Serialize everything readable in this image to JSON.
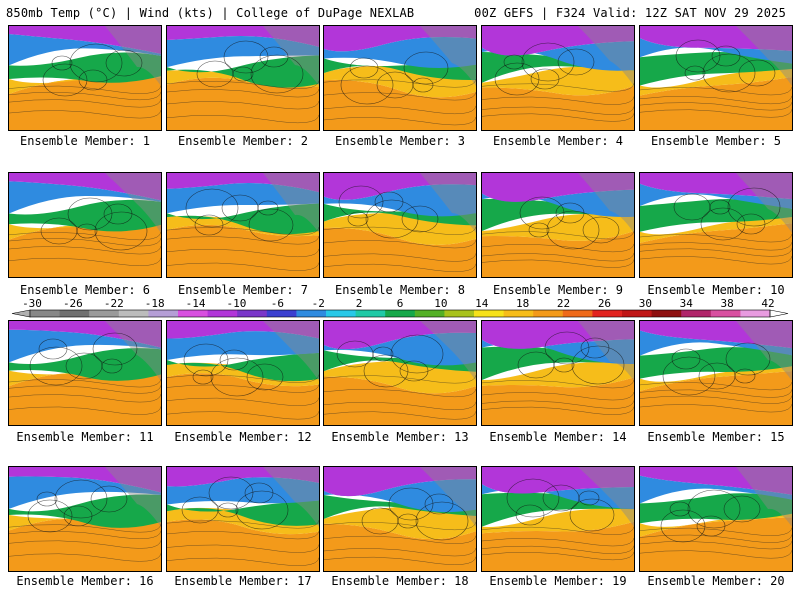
{
  "header": {
    "left": "850mb Temp (°C) | Wind (kts) | College of DuPage NEXLAB",
    "right": "00Z GEFS | F324 Valid: 12Z SAT NOV 29 2025"
  },
  "panel_label_prefix": "Ensemble Member: ",
  "members": [
    1,
    2,
    3,
    4,
    5,
    6,
    7,
    8,
    9,
    10,
    11,
    12,
    13,
    14,
    15,
    16,
    17,
    18,
    19,
    20
  ],
  "colorbar": {
    "ticks": [
      "-30",
      "-26",
      "-22",
      "-18",
      "-14",
      "-10",
      "-6",
      "-2",
      "2",
      "6",
      "10",
      "14",
      "18",
      "22",
      "26",
      "30",
      "34",
      "38",
      "42"
    ],
    "colors": [
      "#888888",
      "#707070",
      "#9a9a9a",
      "#bcbcbc",
      "#b59ed6",
      "#d84fe0",
      "#b236d9",
      "#7a36c9",
      "#3b3fd0",
      "#2f8be0",
      "#28c8e8",
      "#1fc9a6",
      "#16a84a",
      "#54b026",
      "#a8c21c",
      "#f6e21a",
      "#f6bd1a",
      "#f39a1a",
      "#ef6a1a",
      "#e2231f",
      "#c01616",
      "#8e1010",
      "#b0256a",
      "#d84fa0",
      "#e89be0"
    ]
  },
  "colors": {
    "warm": "#f39a1a",
    "mid": "#16a84a",
    "cold": "#2f8be0",
    "arctic": "#b236d9",
    "land": "#8a8a8a"
  }
}
